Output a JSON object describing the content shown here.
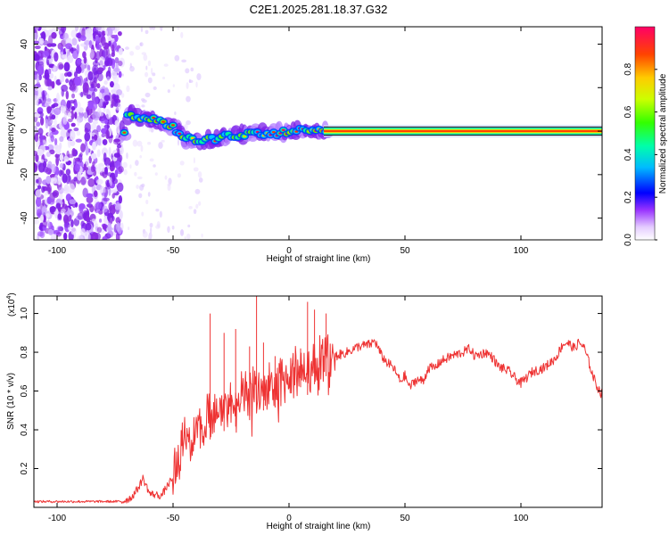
{
  "figure_title": "C2E1.2025.281.18.37.G32",
  "chart_data": [
    {
      "type": "heatmap",
      "xlabel": "Height of straight line (km)",
      "ylabel": "Frequency (Hz)",
      "xlim": [
        -110,
        135
      ],
      "ylim": [
        -50,
        48
      ],
      "xticks": [
        -100,
        -50,
        0,
        50,
        100
      ],
      "yticks": [
        -40,
        -20,
        0,
        20,
        40
      ],
      "xtick_labels": [
        "-100",
        "-50",
        "0",
        "50",
        "100"
      ],
      "ytick_labels": [
        "-40",
        "-20",
        "0",
        "20",
        "40"
      ],
      "colorbar": {
        "label": "Normalized spectral amplitude",
        "range": [
          0,
          1
        ],
        "ticks": [
          0.0,
          0.2,
          0.4,
          0.6,
          0.8
        ],
        "tick_labels": [
          "0.0",
          "0.2",
          "0.4",
          "0.6",
          "0.8"
        ]
      },
      "noise_region_km": [
        -110,
        -72
      ],
      "signal_track": [
        {
          "x": -70,
          "y": 7
        },
        {
          "x": -60,
          "y": 6
        },
        {
          "x": -50,
          "y": 2
        },
        {
          "x": -45,
          "y": -3
        },
        {
          "x": -40,
          "y": -4
        },
        {
          "x": -35,
          "y": -4
        },
        {
          "x": -25,
          "y": -2
        },
        {
          "x": -15,
          "y": -1
        },
        {
          "x": -5,
          "y": -1
        },
        {
          "x": 0,
          "y": 0
        },
        {
          "x": 5,
          "y": 1
        },
        {
          "x": 10,
          "y": 1
        },
        {
          "x": 15,
          "y": 0
        },
        {
          "x": 135,
          "y": 0
        }
      ]
    },
    {
      "type": "line",
      "xlabel": "Height of straight line (km)",
      "ylabel": "SNR (10 * v/v)",
      "y_multiplier": "(x10",
      "y_multiplier_exp": "4",
      "xlim": [
        -110,
        135
      ],
      "ylim": [
        0.0,
        1.09
      ],
      "xticks": [
        -100,
        -50,
        0,
        50,
        100
      ],
      "yticks": [
        0.2,
        0.4,
        0.6,
        0.8,
        1.0
      ],
      "xtick_labels": [
        "-100",
        "-50",
        "0",
        "50",
        "100"
      ],
      "ytick_labels": [
        "0.2",
        "0.4",
        "0.6",
        "0.8",
        "1.0"
      ],
      "series": [
        {
          "name": "SNR",
          "color": "#ee3333",
          "points": [
            [
              -110,
              0.03
            ],
            [
              -100,
              0.03
            ],
            [
              -90,
              0.03
            ],
            [
              -80,
              0.03
            ],
            [
              -72,
              0.03
            ],
            [
              -68,
              0.05
            ],
            [
              -65,
              0.1
            ],
            [
              -63,
              0.15
            ],
            [
              -60,
              0.07
            ],
            [
              -55,
              0.06
            ],
            [
              -52,
              0.12
            ],
            [
              -50,
              0.15
            ],
            [
              -47,
              0.28
            ],
            [
              -45,
              0.4
            ],
            [
              -42,
              0.33
            ],
            [
              -40,
              0.45
            ],
            [
              -37,
              0.38
            ],
            [
              -35,
              0.48
            ],
            [
              -33,
              0.42
            ],
            [
              -30,
              0.52
            ],
            [
              -27,
              0.48
            ],
            [
              -25,
              0.55
            ],
            [
              -22,
              0.5
            ],
            [
              -20,
              0.58
            ],
            [
              -17,
              0.55
            ],
            [
              -15,
              0.62
            ],
            [
              -12,
              0.58
            ],
            [
              -10,
              0.62
            ],
            [
              -7,
              0.6
            ],
            [
              -5,
              0.63
            ],
            [
              -2,
              0.66
            ],
            [
              0,
              0.68
            ],
            [
              3,
              0.7
            ],
            [
              5,
              0.72
            ],
            [
              8,
              0.68
            ],
            [
              10,
              0.72
            ],
            [
              12,
              0.75
            ],
            [
              15,
              0.78
            ],
            [
              18,
              0.77
            ],
            [
              20,
              0.78
            ],
            [
              25,
              0.8
            ],
            [
              30,
              0.83
            ],
            [
              35,
              0.84
            ],
            [
              37,
              0.86
            ],
            [
              40,
              0.78
            ],
            [
              42,
              0.75
            ],
            [
              45,
              0.72
            ],
            [
              48,
              0.65
            ],
            [
              50,
              0.68
            ],
            [
              52,
              0.62
            ],
            [
              55,
              0.66
            ],
            [
              58,
              0.65
            ],
            [
              60,
              0.72
            ],
            [
              63,
              0.72
            ],
            [
              65,
              0.75
            ],
            [
              70,
              0.78
            ],
            [
              75,
              0.8
            ],
            [
              78,
              0.82
            ],
            [
              80,
              0.78
            ],
            [
              85,
              0.8
            ],
            [
              88,
              0.77
            ],
            [
              90,
              0.73
            ],
            [
              95,
              0.7
            ],
            [
              98,
              0.66
            ],
            [
              100,
              0.64
            ],
            [
              105,
              0.7
            ],
            [
              110,
              0.72
            ],
            [
              115,
              0.77
            ],
            [
              118,
              0.84
            ],
            [
              120,
              0.85
            ],
            [
              123,
              0.82
            ],
            [
              125,
              0.85
            ],
            [
              127,
              0.83
            ],
            [
              129,
              0.76
            ],
            [
              131,
              0.68
            ],
            [
              133,
              0.62
            ],
            [
              135,
              0.58
            ]
          ],
          "spikes": [
            {
              "x": -34,
              "y": 1.0
            },
            {
              "x": -28,
              "y": 0.9
            },
            {
              "x": -23,
              "y": 0.92
            },
            {
              "x": -17,
              "y": 0.83
            },
            {
              "x": -14,
              "y": 1.09
            },
            {
              "x": -11,
              "y": 0.85
            },
            {
              "x": -6,
              "y": 0.78
            },
            {
              "x": 5,
              "y": 0.82
            },
            {
              "x": 8,
              "y": 1.06
            },
            {
              "x": 11,
              "y": 1.02
            },
            {
              "x": 16,
              "y": 1.0
            }
          ]
        }
      ]
    }
  ]
}
